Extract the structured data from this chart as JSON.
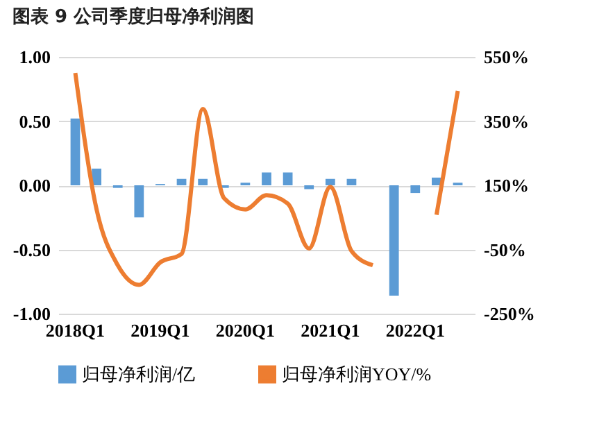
{
  "chart_data": {
    "type": "bar",
    "title": "图表 9   公司季度归母净利润图",
    "categories": [
      "2018Q1",
      null,
      null,
      null,
      "2019Q1",
      null,
      null,
      null,
      "2020Q1",
      null,
      null,
      null,
      "2021Q1",
      null,
      null,
      null,
      "2022Q1",
      null,
      null
    ],
    "series": [
      {
        "name": "归母净利润/亿",
        "color": "#5b9bd5",
        "values": [
          0.52,
          0.13,
          -0.02,
          -0.25,
          0.01,
          0.05,
          0.05,
          -0.02,
          0.02,
          0.1,
          0.1,
          -0.03,
          0.05,
          0.05,
          0,
          -0.86,
          -0.06,
          0.06,
          0.02
        ]
      },
      {
        "name": "归母净利润YOY/%",
        "type": "line",
        "axis": "y2",
        "color": "#ed7d31",
        "values": [
          500,
          75,
          -99,
          -160,
          -90,
          -64,
          388,
          110,
          75,
          119,
          93,
          -47,
          145,
          -55,
          -99,
          null,
          null,
          58,
          444
        ]
      }
    ],
    "ylim": [
      -1,
      1
    ],
    "yticks": [
      {
        "value": 1,
        "label": "1.00"
      },
      {
        "value": 0.5,
        "label": "0.50"
      },
      {
        "value": 0,
        "label": "0.00"
      },
      {
        "value": -0.5,
        "label": "-0.50"
      },
      {
        "value": -1,
        "label": "-1.00"
      }
    ],
    "y2lim": [
      -250,
      550
    ],
    "y2ticks": [
      {
        "value": 550,
        "label": "550%"
      },
      {
        "value": 350,
        "label": "350%"
      },
      {
        "value": 150,
        "label": "150%"
      },
      {
        "value": -50,
        "label": "-50%"
      },
      {
        "value": -250,
        "label": "-250%"
      }
    ],
    "grid": "y",
    "legend": "bottom"
  }
}
